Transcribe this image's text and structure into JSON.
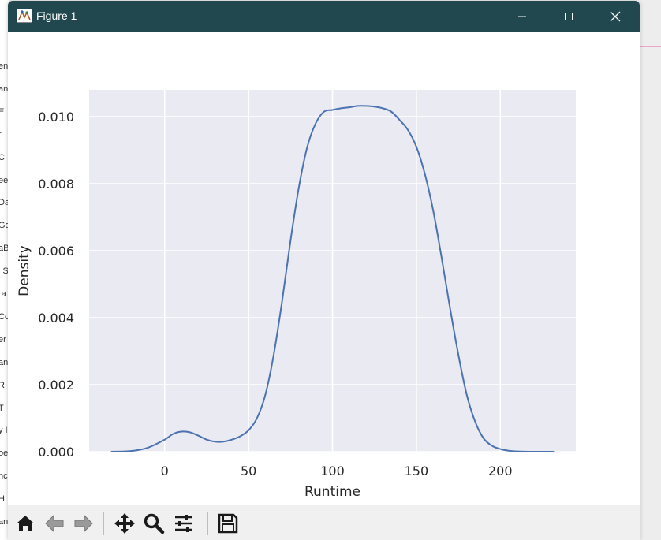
{
  "window": {
    "title": "Figure 1",
    "title_bg": "#21474f",
    "controls": [
      "minimize-icon",
      "maximize-icon",
      "close-icon"
    ]
  },
  "background_app": {
    "fragments": [
      "en",
      "an",
      "E",
      "r",
      "C",
      "ee",
      "Da",
      "Go",
      "aB",
      "l S",
      "ra",
      "Co",
      "er",
      "an",
      "R",
      "T",
      "y I",
      "oe",
      "nc",
      "H",
      "an"
    ]
  },
  "toolbar": {
    "buttons": [
      "home-icon",
      "back-icon",
      "forward-icon",
      "pan-icon",
      "zoom-icon",
      "configure-subplots-icon",
      "save-icon"
    ]
  },
  "chart_data": {
    "type": "line",
    "title": "",
    "xlabel": "Runtime",
    "ylabel": "Density",
    "xlim": [
      -45,
      245
    ],
    "ylim": [
      0,
      0.0108
    ],
    "xticks": [
      0,
      50,
      100,
      150,
      200
    ],
    "xtick_labels": [
      "0",
      "50",
      "100",
      "150",
      "200"
    ],
    "yticks": [
      0.0,
      0.002,
      0.004,
      0.006,
      0.008,
      0.01
    ],
    "ytick_labels": [
      "0.000",
      "0.002",
      "0.004",
      "0.006",
      "0.008",
      "0.010"
    ],
    "grid": true,
    "background": "#eaeaf2",
    "line_color": "#4c72b0",
    "series": [
      {
        "x": [
          -32,
          -20,
          -10,
          0,
          5,
          10,
          15,
          20,
          25,
          30,
          35,
          40,
          45,
          50,
          55,
          60,
          65,
          70,
          75,
          80,
          85,
          90,
          95,
          100,
          105,
          110,
          115,
          120,
          125,
          130,
          135,
          140,
          145,
          150,
          155,
          160,
          165,
          170,
          175,
          180,
          185,
          190,
          195,
          200,
          205,
          210,
          220,
          232
        ],
        "y": [
          0.0,
          2e-05,
          0.00012,
          0.00036,
          0.00053,
          0.0006,
          0.00058,
          0.00048,
          0.00036,
          0.0003,
          0.0003,
          0.00036,
          0.00046,
          0.00064,
          0.001,
          0.0017,
          0.0029,
          0.0045,
          0.0063,
          0.0079,
          0.0091,
          0.0098,
          0.01015,
          0.0102,
          0.01025,
          0.01028,
          0.01032,
          0.01032,
          0.0103,
          0.01025,
          0.01015,
          0.0099,
          0.0096,
          0.0091,
          0.0083,
          0.0072,
          0.0058,
          0.0043,
          0.0029,
          0.0017,
          0.0009,
          0.0004,
          0.00018,
          8e-05,
          3e-05,
          1e-05,
          0.0,
          0.0
        ]
      }
    ]
  }
}
